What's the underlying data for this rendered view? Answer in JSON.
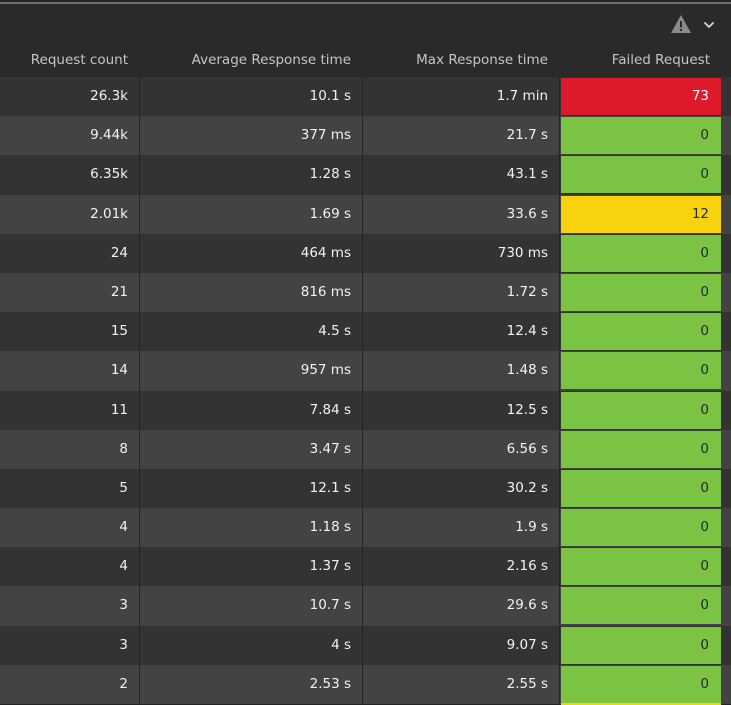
{
  "toolbar": {
    "warning_icon": "warning-triangle-icon",
    "collapse_icon": "chevron-down-icon"
  },
  "table": {
    "columns": [
      "Request count",
      "Average Response time",
      "Max Response time",
      "Failed Request"
    ],
    "rows": [
      {
        "request_count": "26.3k",
        "avg_response": "10.1 s",
        "max_response": "1.7 min",
        "failed": "73",
        "status": "red"
      },
      {
        "request_count": "9.44k",
        "avg_response": "377 ms",
        "max_response": "21.7 s",
        "failed": "0",
        "status": "green"
      },
      {
        "request_count": "6.35k",
        "avg_response": "1.28 s",
        "max_response": "43.1 s",
        "failed": "0",
        "status": "green"
      },
      {
        "request_count": "2.01k",
        "avg_response": "1.69 s",
        "max_response": "33.6 s",
        "failed": "12",
        "status": "yellow"
      },
      {
        "request_count": "24",
        "avg_response": "464 ms",
        "max_response": "730 ms",
        "failed": "0",
        "status": "green"
      },
      {
        "request_count": "21",
        "avg_response": "816 ms",
        "max_response": "1.72 s",
        "failed": "0",
        "status": "green"
      },
      {
        "request_count": "15",
        "avg_response": "4.5 s",
        "max_response": "12.4 s",
        "failed": "0",
        "status": "green"
      },
      {
        "request_count": "14",
        "avg_response": "957 ms",
        "max_response": "1.48 s",
        "failed": "0",
        "status": "green"
      },
      {
        "request_count": "11",
        "avg_response": "7.84 s",
        "max_response": "12.5 s",
        "failed": "0",
        "status": "green"
      },
      {
        "request_count": "8",
        "avg_response": "3.47 s",
        "max_response": "6.56 s",
        "failed": "0",
        "status": "green"
      },
      {
        "request_count": "5",
        "avg_response": "12.1 s",
        "max_response": "30.2 s",
        "failed": "0",
        "status": "green"
      },
      {
        "request_count": "4",
        "avg_response": "1.18 s",
        "max_response": "1.9 s",
        "failed": "0",
        "status": "green"
      },
      {
        "request_count": "4",
        "avg_response": "1.37 s",
        "max_response": "2.16 s",
        "failed": "0",
        "status": "green"
      },
      {
        "request_count": "3",
        "avg_response": "10.7 s",
        "max_response": "29.6 s",
        "failed": "0",
        "status": "green"
      },
      {
        "request_count": "3",
        "avg_response": "4 s",
        "max_response": "9.07 s",
        "failed": "0",
        "status": "green"
      },
      {
        "request_count": "2",
        "avg_response": "2.53 s",
        "max_response": "2.55 s",
        "failed": "0",
        "status": "green"
      }
    ]
  },
  "colors": {
    "red": "#dc1a2a",
    "green": "#7bc343",
    "yellow": "#f7d20d",
    "warning_icon": "#8a8a8a"
  }
}
